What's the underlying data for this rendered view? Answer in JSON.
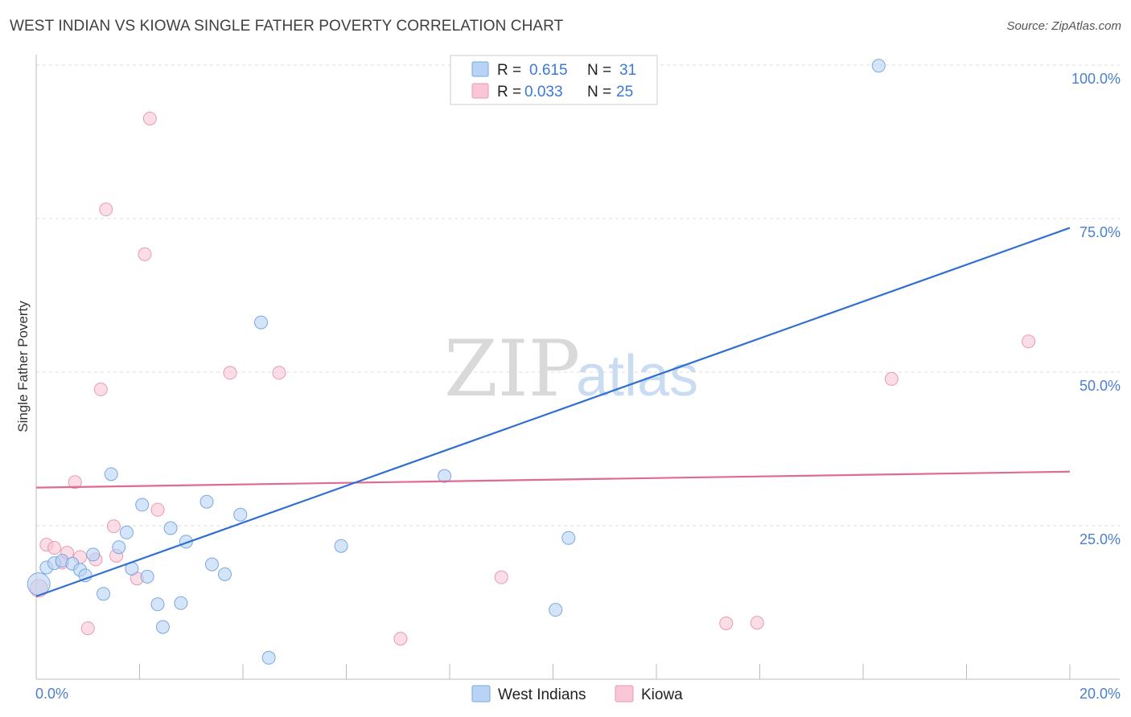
{
  "header": {
    "title": "WEST INDIAN VS KIOWA SINGLE FATHER POVERTY CORRELATION CHART",
    "source": "Source: ZipAtlas.com"
  },
  "legend": {
    "r_label": "R =",
    "n_label": "N =",
    "series1": {
      "r": "0.615",
      "n": "31"
    },
    "series2": {
      "r": "0.033",
      "n": "25"
    }
  },
  "bottom_legend": {
    "s1": "West Indians",
    "s2": "Kiowa"
  },
  "watermark": {
    "zip": "ZIP",
    "atlas": "atlas"
  },
  "chart_data": {
    "type": "scatter",
    "title": "WEST INDIAN VS KIOWA SINGLE FATHER POVERTY CORRELATION CHART",
    "xlabel": "",
    "ylabel": "Single Father Poverty",
    "xlim": [
      0,
      20
    ],
    "ylim": [
      0,
      102
    ],
    "x_tick_labels": [
      {
        "v": 0,
        "label": "0.0%"
      },
      {
        "v": 20,
        "label": "20.0%"
      }
    ],
    "y_tick_labels": [
      {
        "v": 25,
        "label": "25.0%"
      },
      {
        "v": 50,
        "label": "50.0%"
      },
      {
        "v": 75,
        "label": "75.0%"
      },
      {
        "v": 100,
        "label": "100.0%"
      }
    ],
    "colors": {
      "s1_fill": "#b8d3f5",
      "s1_stroke": "#7aa7e0",
      "s1_line": "#2f6fd0",
      "s2_fill": "#f8c6d4",
      "s2_stroke": "#e99ab2",
      "s2_line": "#e06a92"
    },
    "series": [
      {
        "name": "West Indians",
        "points": [
          [
            0.05,
            15.5
          ],
          [
            0.2,
            18.2
          ],
          [
            0.35,
            18.9
          ],
          [
            0.5,
            19.3
          ],
          [
            0.7,
            18.8
          ],
          [
            0.85,
            17.8
          ],
          [
            0.95,
            16.9
          ],
          [
            1.1,
            20.3
          ],
          [
            1.3,
            13.9
          ],
          [
            1.45,
            33.4
          ],
          [
            1.6,
            21.5
          ],
          [
            1.75,
            23.9
          ],
          [
            1.85,
            18.0
          ],
          [
            2.05,
            28.4
          ],
          [
            2.15,
            16.7
          ],
          [
            2.35,
            12.2
          ],
          [
            2.45,
            8.5
          ],
          [
            2.6,
            24.6
          ],
          [
            2.8,
            12.4
          ],
          [
            2.9,
            22.4
          ],
          [
            3.3,
            28.9
          ],
          [
            3.4,
            18.7
          ],
          [
            3.65,
            17.1
          ],
          [
            3.95,
            26.8
          ],
          [
            4.35,
            58.1
          ],
          [
            4.5,
            3.5
          ],
          [
            5.9,
            21.7
          ],
          [
            7.9,
            33.1
          ],
          [
            10.05,
            11.3
          ],
          [
            10.3,
            23.0
          ],
          [
            16.3,
            99.9
          ]
        ],
        "trend": {
          "x": [
            0,
            20
          ],
          "y": [
            13.5,
            73.5
          ]
        }
      },
      {
        "name": "Kiowa",
        "points": [
          [
            0.05,
            14.8
          ],
          [
            0.2,
            21.9
          ],
          [
            0.35,
            21.4
          ],
          [
            0.5,
            19.0
          ],
          [
            0.6,
            20.6
          ],
          [
            0.75,
            32.1
          ],
          [
            0.85,
            19.9
          ],
          [
            1.0,
            8.3
          ],
          [
            1.15,
            19.5
          ],
          [
            1.25,
            47.2
          ],
          [
            1.35,
            76.5
          ],
          [
            1.5,
            24.9
          ],
          [
            1.55,
            20.1
          ],
          [
            1.95,
            16.4
          ],
          [
            2.1,
            69.2
          ],
          [
            2.2,
            91.3
          ],
          [
            2.35,
            27.6
          ],
          [
            3.75,
            49.9
          ],
          [
            4.7,
            49.9
          ],
          [
            7.05,
            6.6
          ],
          [
            9.0,
            16.6
          ],
          [
            13.35,
            9.1
          ],
          [
            13.95,
            9.2
          ],
          [
            16.55,
            48.9
          ],
          [
            19.2,
            55.0
          ]
        ],
        "trend": {
          "x": [
            0,
            20
          ],
          "y": [
            31.2,
            33.8
          ]
        }
      }
    ]
  }
}
